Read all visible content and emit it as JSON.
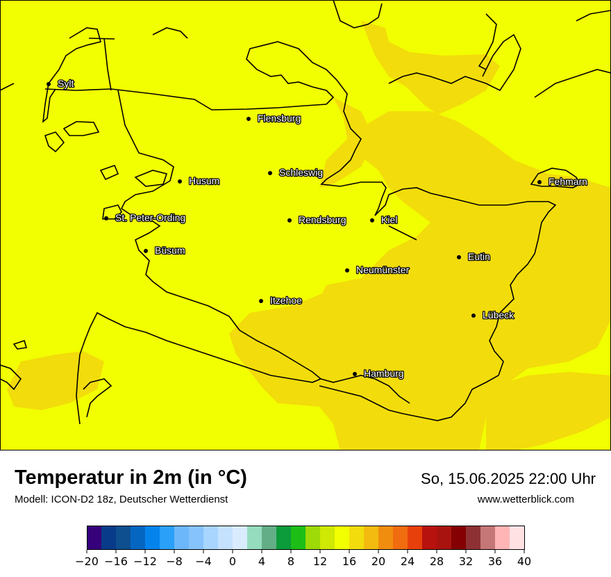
{
  "map": {
    "colors": {
      "background_field": "#f2ff00",
      "warm_field": "#f2dc0b",
      "border_line": "#000000",
      "city_dot": "#000000"
    },
    "cities": [
      {
        "name": "Sylt"
      },
      {
        "name": "Flensburg"
      },
      {
        "name": "Schleswig"
      },
      {
        "name": "Husum"
      },
      {
        "name": "Fehmarn"
      },
      {
        "name": "St. Peter-Ording"
      },
      {
        "name": "Rendsburg"
      },
      {
        "name": "Kiel"
      },
      {
        "name": "Büsum"
      },
      {
        "name": "Eutin"
      },
      {
        "name": "Neumünster"
      },
      {
        "name": "Itzehoe"
      },
      {
        "name": "Lübeck"
      },
      {
        "name": "Hamburg"
      }
    ]
  },
  "header": {
    "title": "Temperatur in 2m (in °C)",
    "model": "Modell: ICON-D2 18z, Deutscher Wetterdienst",
    "datetime": "So, 15.06.2025 22:00 Uhr",
    "website": "www.wetterblick.com"
  },
  "legend": {
    "colors": [
      "#36007a",
      "#083c8a",
      "#0d4f8f",
      "#0566c2",
      "#0483ec",
      "#2aa0f8",
      "#6cb6fa",
      "#86c3fc",
      "#a7d5fd",
      "#c4e2fe",
      "#d9ecfe",
      "#95dcbf",
      "#64ae87",
      "#0c9c3b",
      "#1dbf17",
      "#9ed908",
      "#cfe804",
      "#f2ff00",
      "#f2dc0b",
      "#f3bb0f",
      "#f08d0f",
      "#f06c0f",
      "#e8400b",
      "#b8120e",
      "#a9130f",
      "#840002",
      "#8e3134",
      "#c57676",
      "#ffb5b5",
      "#ffe1e4"
    ],
    "tick_labels": [
      "−20",
      "−16",
      "−12",
      "−8",
      "−4",
      "0",
      "4",
      "8",
      "12",
      "16",
      "20",
      "24",
      "28",
      "32",
      "36",
      "40"
    ]
  }
}
